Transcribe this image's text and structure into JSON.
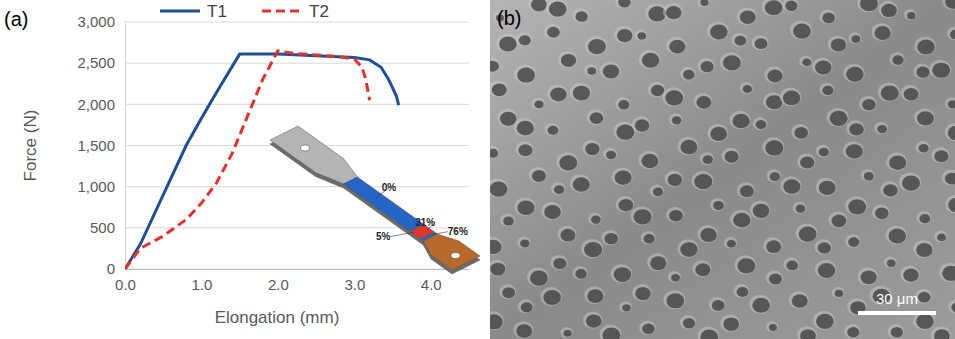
{
  "chart_data": {
    "type": "line",
    "x_label": "Elongation (mm)",
    "y_label": "Force (N)",
    "xlim": [
      0,
      4.5
    ],
    "xticks": [
      {
        "value": 0,
        "label": "0.0"
      },
      {
        "value": 1,
        "label": "1.0"
      },
      {
        "value": 2,
        "label": "2.0"
      },
      {
        "value": 3,
        "label": "3.0"
      },
      {
        "value": 4,
        "label": "4.0"
      }
    ],
    "ylim": [
      0,
      3000
    ],
    "yticks": [
      0,
      500,
      {
        "value": 1000,
        "label": "1,000"
      },
      {
        "value": 1500,
        "label": "1,500"
      },
      {
        "value": 2000,
        "label": "2,000"
      },
      {
        "value": 2500,
        "label": "2,500"
      },
      {
        "value": 3000,
        "label": "3,000"
      }
    ],
    "grid": true,
    "legend": "top",
    "series": [
      {
        "name": "T1",
        "color": "#1f4e9a",
        "line_style": "solid",
        "x": [
          0,
          0.2,
          0.5,
          0.8,
          1.0,
          1.2,
          1.5,
          2.0,
          2.5,
          3.0,
          3.2,
          3.35,
          3.45,
          3.55,
          3.58
        ],
        "values": [
          0,
          300,
          900,
          1500,
          1830,
          2150,
          2610,
          2610,
          2590,
          2570,
          2540,
          2450,
          2300,
          2100,
          1990
        ]
      },
      {
        "name": "T2",
        "color": "#e8302a",
        "line_style": "dashed",
        "x": [
          0,
          0.2,
          0.5,
          0.8,
          1.0,
          1.2,
          1.4,
          1.6,
          1.8,
          2.0,
          2.2,
          2.5,
          2.8,
          3.0,
          3.1,
          3.15,
          3.2
        ],
        "values": [
          0,
          250,
          400,
          600,
          800,
          1050,
          1400,
          1850,
          2300,
          2650,
          2620,
          2600,
          2580,
          2550,
          2450,
          2300,
          2050
        ]
      }
    ]
  },
  "panel_a": {
    "label": "(a)",
    "inset_labels": [
      "0%",
      "5%",
      "31%",
      "76%"
    ]
  },
  "panel_b": {
    "label": "(b)",
    "scale_bar": "30 μm"
  }
}
